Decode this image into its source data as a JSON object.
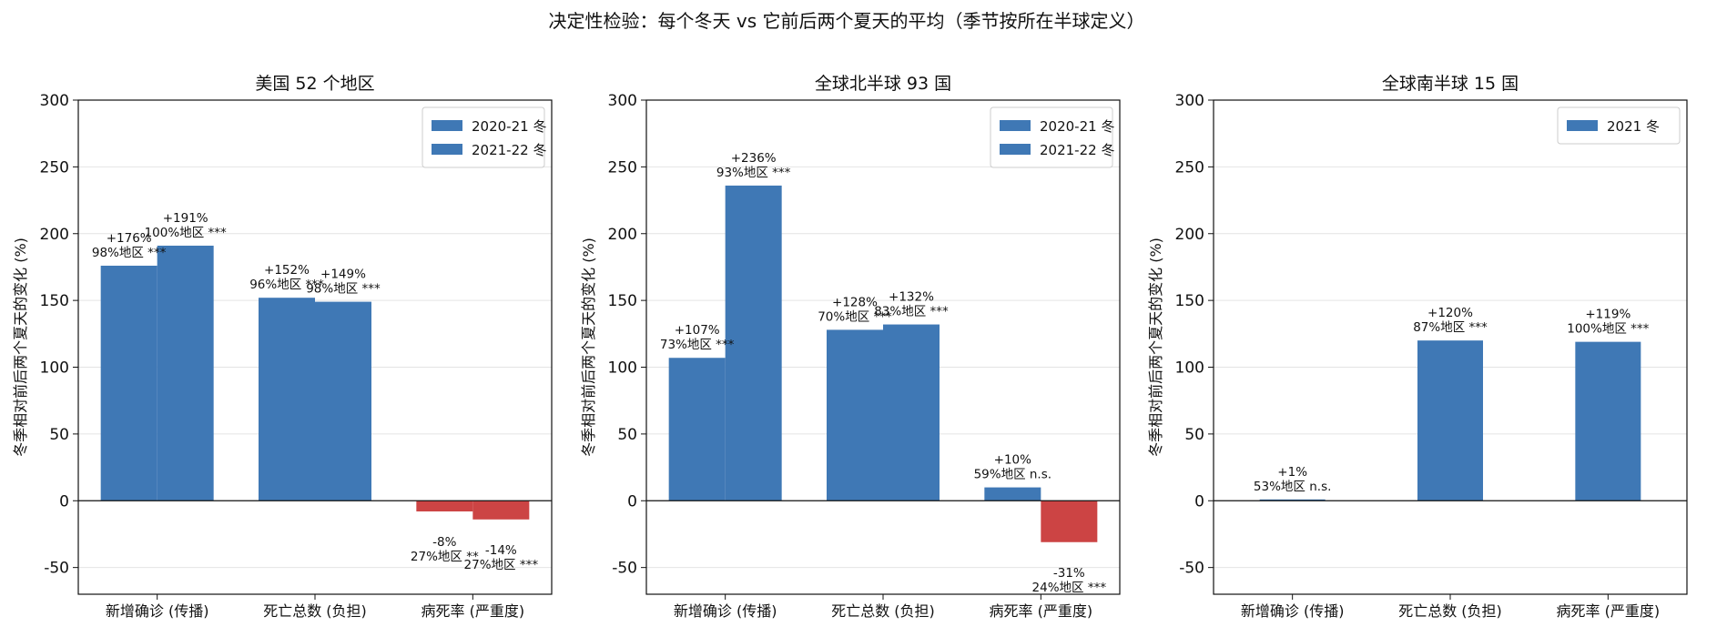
{
  "figure": {
    "suptitle": "决定性检验：每个冬天 vs 它前后两个夏天的平均（季节按所在半球定义）"
  },
  "chart_data": [
    {
      "type": "bar",
      "title": "美国 52 个地区",
      "ylabel": "冬季相对前后两个夏天的变化 (%)",
      "ylim": [
        -70,
        300
      ],
      "yticks": [
        -50,
        0,
        50,
        100,
        150,
        200,
        250,
        300
      ],
      "grid": true,
      "legend": "top-right",
      "categories": [
        "新增确诊 (传播)",
        "死亡总数 (负担)",
        "病死率 (严重度)"
      ],
      "series": [
        {
          "name": "2020-21 冬",
          "values": [
            176,
            152,
            -8
          ],
          "labels": [
            "+176%\n98%地区 ***",
            "+152%\n96%地区 ***",
            "-8%\n27%地区 **"
          ]
        },
        {
          "name": "2021-22 冬",
          "values": [
            191,
            149,
            -14
          ],
          "labels": [
            "+191%\n100%地区 ***",
            "+149%\n98%地区 ***",
            "-14%\n27%地区 ***"
          ]
        }
      ]
    },
    {
      "type": "bar",
      "title": "全球北半球 93 国",
      "ylabel": "冬季相对前后两个夏天的变化 (%)",
      "ylim": [
        -70,
        300
      ],
      "yticks": [
        -50,
        0,
        50,
        100,
        150,
        200,
        250,
        300
      ],
      "grid": true,
      "legend": "top-right",
      "categories": [
        "新增确诊 (传播)",
        "死亡总数 (负担)",
        "病死率 (严重度)"
      ],
      "series": [
        {
          "name": "2020-21 冬",
          "values": [
            107,
            128,
            10
          ],
          "labels": [
            "+107%\n73%地区 ***",
            "+128%\n70%地区 ***",
            "+10%\n59%地区 n.s."
          ]
        },
        {
          "name": "2021-22 冬",
          "values": [
            236,
            132,
            -31
          ],
          "labels": [
            "+236%\n93%地区 ***",
            "+132%\n83%地区 ***",
            "-31%\n24%地区 ***"
          ]
        }
      ]
    },
    {
      "type": "bar",
      "title": "全球南半球 15 国",
      "ylabel": "冬季相对前后两个夏天的变化 (%)",
      "ylim": [
        -70,
        300
      ],
      "yticks": [
        -50,
        0,
        50,
        100,
        150,
        200,
        250,
        300
      ],
      "grid": true,
      "legend": "top-right",
      "categories": [
        "新增确诊 (传播)",
        "死亡总数 (负担)",
        "病死率 (严重度)"
      ],
      "series": [
        {
          "name": "2021 冬",
          "values": [
            1,
            120,
            119
          ],
          "labels": [
            "+1%\n53%地区 n.s.",
            "+120%\n87%地区 ***",
            "+119%\n100%地区 ***"
          ]
        }
      ]
    }
  ],
  "colors": {
    "positive": "#3f78b5",
    "negative": "#cc4444",
    "grid": "#e4e4e4",
    "axis": "#111111"
  }
}
